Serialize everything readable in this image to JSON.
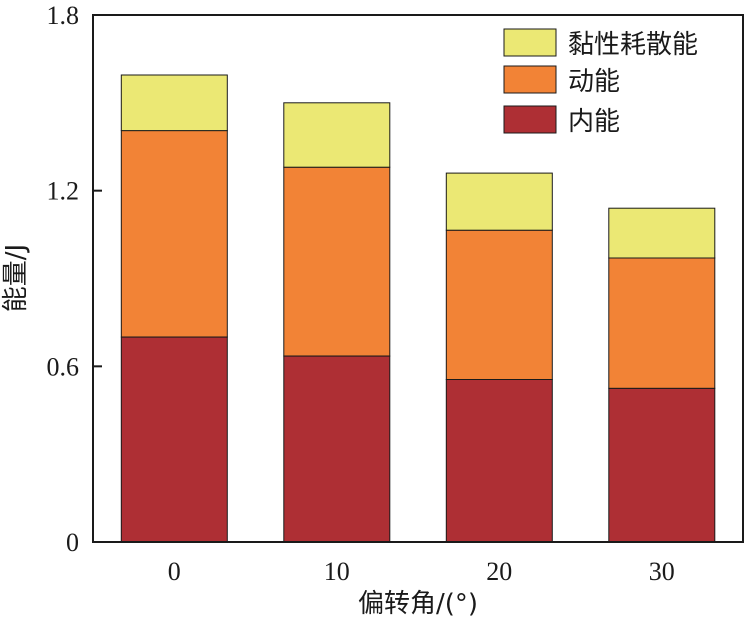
{
  "chart_data": {
    "type": "bar",
    "stacked": true,
    "categories": [
      "0",
      "10",
      "20",
      "30"
    ],
    "series": [
      {
        "name": "内能",
        "color": "#ae2f34",
        "values": [
          0.7,
          0.635,
          0.555,
          0.525
        ]
      },
      {
        "name": "动能",
        "color": "#f28336",
        "values": [
          0.705,
          0.645,
          0.51,
          0.445
        ]
      },
      {
        "name": "黏性耗散能",
        "color": "#ebe874",
        "values": [
          0.19,
          0.22,
          0.195,
          0.17
        ]
      }
    ],
    "totals": [
      1.595,
      1.5,
      1.26,
      1.14
    ],
    "ylim": [
      0,
      1.8
    ],
    "yticks": [
      "0",
      "0.6",
      "1.2",
      "1.8"
    ],
    "xlabel": "偏转角/(°)",
    "ylabel": "能量/J",
    "legend": [
      "黏性耗散能",
      "动能",
      "内能"
    ],
    "legend_position": "top-right"
  }
}
